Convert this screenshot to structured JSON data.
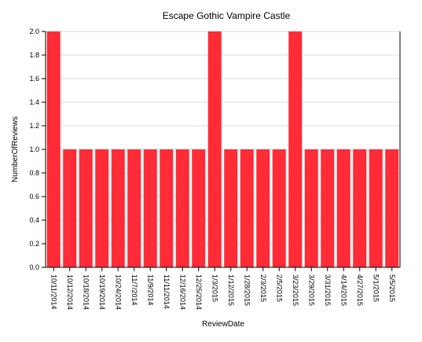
{
  "chart_data": {
    "type": "bar",
    "title": "Escape Gothic Vampire Castle",
    "xlabel": "ReviewDate",
    "ylabel": "NumberOfReviews",
    "ylim": [
      0,
      2
    ],
    "yticks": [
      "0.0",
      "0.2",
      "0.4",
      "0.6",
      "0.8",
      "1.0",
      "1.2",
      "1.4",
      "1.6",
      "1.8",
      "2.0"
    ],
    "grid": true,
    "bar_color": "#ff2b36",
    "categories": [
      "10/11/2014",
      "10/12/2014",
      "10/18/2014",
      "10/19/2014",
      "10/24/2014",
      "11/7/2014",
      "11/9/2014",
      "11/11/2014",
      "12/16/2014",
      "12/25/2014",
      "1/3/2015",
      "1/12/2015",
      "1/28/2015",
      "2/3/2015",
      "2/5/2015",
      "3/23/2015",
      "3/29/2015",
      "3/31/2015",
      "4/14/2015",
      "4/27/2015",
      "5/1/2015",
      "5/5/2015"
    ],
    "values": [
      2,
      1,
      1,
      1,
      1,
      1,
      1,
      1,
      1,
      1,
      2,
      1,
      1,
      1,
      1,
      2,
      1,
      1,
      1,
      1,
      1,
      1
    ]
  }
}
